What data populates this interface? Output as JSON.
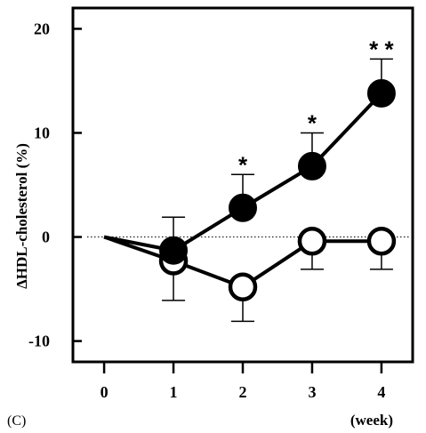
{
  "chart_data": {
    "type": "line",
    "panel_label": "(C)",
    "title": "",
    "xlabel": "(week)",
    "ylabel": "ΔHDL-cholesterol (%)",
    "x": [
      0,
      1,
      2,
      3,
      4
    ],
    "x_ticks": [
      "0",
      "1",
      "2",
      "3",
      "4"
    ],
    "xlim": [
      -0.45,
      4.45
    ],
    "ylim": [
      -12,
      22
    ],
    "y_ticks": [
      {
        "value": 20,
        "label": "20"
      },
      {
        "value": 10,
        "label": "10"
      },
      {
        "value": 0,
        "label": "0"
      },
      {
        "value": -10,
        "label": "-10"
      }
    ],
    "reference_line": {
      "y": 0,
      "style": "dotted"
    },
    "series": [
      {
        "marker": "filled-circle",
        "color": "#000000",
        "values": [
          0,
          -1.3,
          2.8,
          6.8,
          13.8
        ],
        "error_upper": [
          null,
          3.2,
          3.2,
          3.2,
          3.3
        ],
        "error_lower": [
          null,
          0,
          0,
          0,
          0
        ],
        "annotations": [
          "",
          "",
          "*",
          "*",
          "* *"
        ]
      },
      {
        "marker": "open-circle",
        "color": "#000000",
        "values": [
          0,
          -2.3,
          -4.8,
          -0.4,
          -0.4
        ],
        "error_upper": [
          null,
          0,
          0,
          0,
          0
        ],
        "error_lower": [
          null,
          3.8,
          3.3,
          2.7,
          2.7
        ],
        "annotations": [
          "",
          "",
          "",
          "",
          ""
        ]
      }
    ],
    "grid": false,
    "legend": "none"
  }
}
